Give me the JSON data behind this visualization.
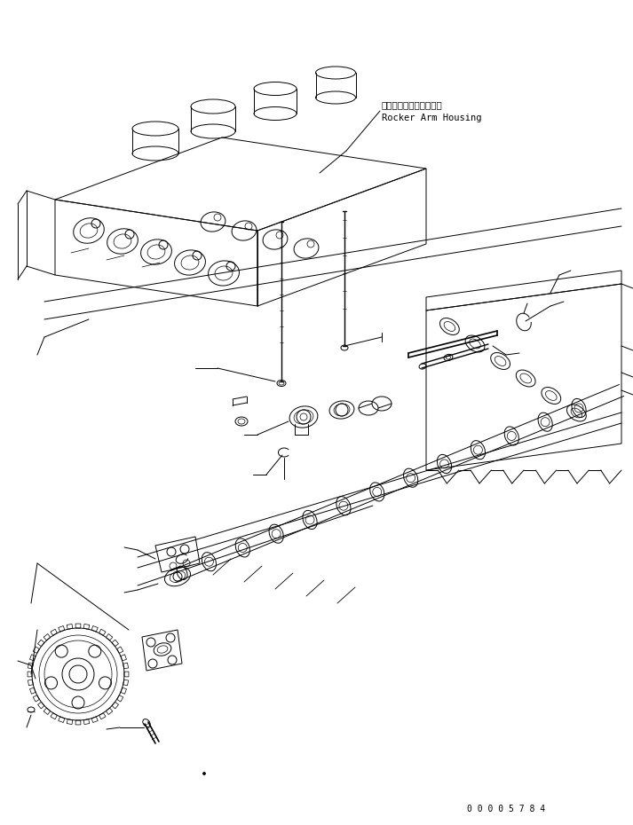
{
  "background_color": "#ffffff",
  "line_color": "#000000",
  "fig_width": 7.13,
  "fig_height": 9.3,
  "dpi": 100,
  "label_japanese": "ロッカアームハウジング",
  "label_english": "Rocker Arm Housing",
  "part_number": "0 0 0 0 5 7 8 4",
  "annotation_font_size": 7.5,
  "part_font_size": 7
}
